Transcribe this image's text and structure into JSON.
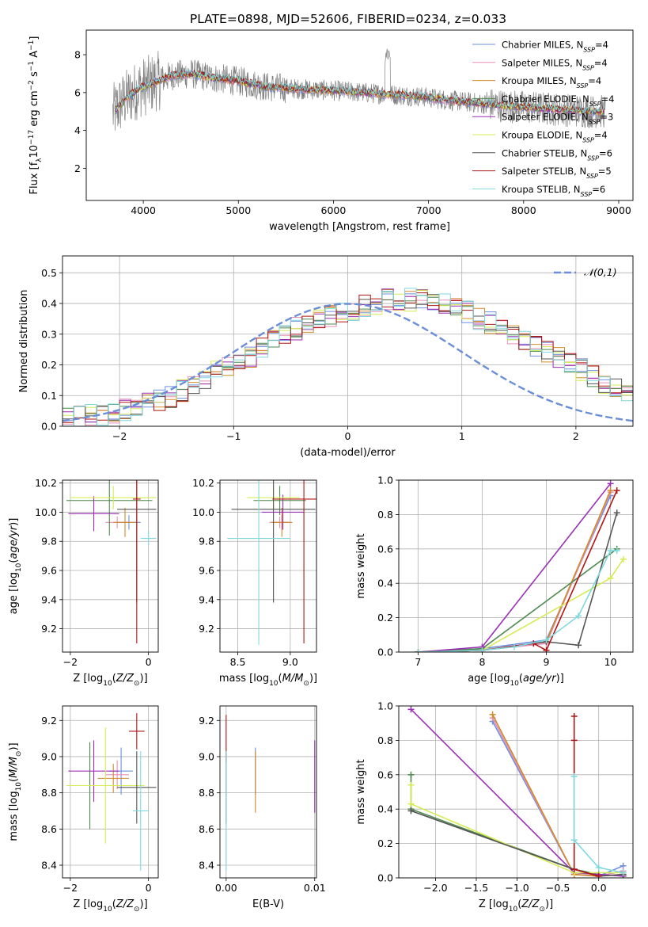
{
  "figure": {
    "title": "PLATE=0898, MJD=52606, FIBERID=0234, z=0.033"
  },
  "colors": {
    "Chabrier MILES": "#6c8fe0",
    "Salpeter MILES": "#e88fb8",
    "Kroupa MILES": "#d08a2a",
    "Chabrier ELODIE": "#4f8a4f",
    "Salpeter ELODIE": "#9c2fb5",
    "Kroupa ELODIE": "#d6ec55",
    "Chabrier STELIB": "#555555",
    "Salpeter STELIB": "#b01515",
    "Kroupa STELIB": "#7fd9df",
    "data": "#808080",
    "gauss": "#6a8fd8"
  },
  "chart_data": [
    {
      "id": "spectrum",
      "type": "line",
      "xlabel": "wavelength [Angstrom, rest frame]",
      "ylabel": "Flux [f_λ 10^-17 erg cm^-2 s^-1 A^-1]",
      "xlim": [
        3400,
        9150
      ],
      "ylim": [
        0.3,
        9.3
      ],
      "xticks": [
        4000,
        5000,
        6000,
        7000,
        8000,
        9000
      ],
      "yticks": [
        2,
        4,
        6,
        8
      ],
      "legend_position": "top-right",
      "legend": [
        {
          "label": "Chabrier MILES, N_SSP=4",
          "series": "Chabrier MILES"
        },
        {
          "label": "Salpeter MILES, N_SSP=4",
          "series": "Salpeter MILES"
        },
        {
          "label": "Kroupa MILES, N_SSP=4",
          "series": "Kroupa MILES"
        },
        {
          "label": "Chabrier ELODIE, N_SSP=4",
          "series": "Chabrier ELODIE"
        },
        {
          "label": "Salpeter ELODIE, N_SSP=3",
          "series": "Salpeter ELODIE"
        },
        {
          "label": "Kroupa ELODIE, N_SSP=4",
          "series": "Kroupa ELODIE"
        },
        {
          "label": "Chabrier STELIB, N_SSP=6",
          "series": "Chabrier STELIB"
        },
        {
          "label": "Salpeter STELIB, N_SSP=5",
          "series": "Salpeter STELIB"
        },
        {
          "label": "Kroupa STELIB, N_SSP=6",
          "series": "Kroupa STELIB"
        }
      ],
      "continuum": {
        "x": [
          3680,
          3800,
          3950,
          4100,
          4300,
          4500,
          4700,
          5000,
          5300,
          5600,
          6000,
          6300,
          6600,
          6900,
          7200,
          7500,
          7800,
          8100,
          8400,
          8700,
          8850
        ],
        "y": [
          4.9,
          5.6,
          6.2,
          6.5,
          6.9,
          7.0,
          6.8,
          6.6,
          6.3,
          6.2,
          6.1,
          6.0,
          5.9,
          5.8,
          5.6,
          5.45,
          5.3,
          5.2,
          5.1,
          5.0,
          5.0
        ]
      }
    },
    {
      "id": "residual-histogram",
      "type": "line",
      "xlabel": "(data-model)/error",
      "ylabel": "Normed distribution",
      "xlim": [
        -2.5,
        2.5
      ],
      "ylim": [
        0,
        0.555
      ],
      "xticks": [
        -2,
        -1,
        0,
        1,
        2
      ],
      "yticks": [
        0.0,
        0.1,
        0.2,
        0.3,
        0.4,
        0.5
      ],
      "legend_position": "top-right",
      "gauss_label": "𝒩(0,1)",
      "bin_edges_from": -2.5,
      "bin_width": 0.1,
      "base_values": [
        0.022,
        0.028,
        0.034,
        0.04,
        0.048,
        0.056,
        0.064,
        0.074,
        0.086,
        0.098,
        0.118,
        0.138,
        0.158,
        0.178,
        0.196,
        0.212,
        0.228,
        0.25,
        0.275,
        0.3,
        0.318,
        0.33,
        0.348,
        0.358,
        0.364,
        0.378,
        0.392,
        0.398,
        0.41,
        0.415,
        0.412,
        0.408,
        0.405,
        0.398,
        0.388,
        0.372,
        0.35,
        0.336,
        0.322,
        0.305,
        0.286,
        0.266,
        0.245,
        0.226,
        0.205,
        0.184,
        0.164,
        0.144,
        0.122,
        0.105,
        0.09,
        0.078,
        0.072,
        0.066,
        0.06,
        0.052,
        0.046,
        0.041,
        0.036,
        0.03
      ]
    },
    {
      "id": "age-vs-Z",
      "type": "scatter",
      "xlabel": "Z [log10(Z/Z⊙)]",
      "ylabel": "age  [log10(age/yr)]",
      "xlim": [
        -2.2,
        0.25
      ],
      "ylim": [
        9.04,
        10.22
      ],
      "xticks": [
        -2,
        0
      ],
      "yticks": [
        9.2,
        9.4,
        9.6,
        9.8,
        10.0,
        10.2
      ],
      "points": [
        {
          "series": "Chabrier MILES",
          "x": -0.5,
          "xerr": 0.3,
          "y": 9.93,
          "yerr": 0.05
        },
        {
          "series": "Salpeter MILES",
          "x": -0.8,
          "xerr": 0.3,
          "y": 9.93,
          "yerr": 0.04
        },
        {
          "series": "Kroupa MILES",
          "x": -0.6,
          "xerr": 0.3,
          "y": 9.93,
          "yerr": 0.1
        },
        {
          "series": "Chabrier ELODIE",
          "x": -1.0,
          "xerr": 1.1,
          "y": 10.08,
          "yerr": 0.24
        },
        {
          "series": "Salpeter ELODIE",
          "x": -1.4,
          "xerr": 0.65,
          "y": 9.99,
          "yerr": 0.12
        },
        {
          "series": "Kroupa ELODIE",
          "x": -0.9,
          "xerr": 1.1,
          "y": 10.1,
          "yerr": 0.08
        },
        {
          "series": "Chabrier STELIB",
          "x": -0.3,
          "xerr": 0.5,
          "y": 10.02,
          "yerr": 0.64
        },
        {
          "series": "Salpeter STELIB",
          "x": -0.3,
          "xerr": 0.1,
          "y": 10.09,
          "yerr": 0.99
        },
        {
          "series": "Kroupa STELIB",
          "x": 0.0,
          "xerr": 0.2,
          "y": 9.82,
          "yerr": 0.05
        }
      ]
    },
    {
      "id": "age-vs-mass",
      "type": "scatter",
      "xlabel": "mass [log10(M/M⊙)]",
      "ylabel": "",
      "xlim": [
        8.33,
        9.25
      ],
      "ylim": [
        9.04,
        10.22
      ],
      "xticks": [
        8.5,
        9.0
      ],
      "yticks": [
        9.2,
        9.4,
        9.6,
        9.8,
        10.0,
        10.2
      ],
      "points": [
        {
          "series": "Chabrier MILES",
          "x": 8.92,
          "xerr": 0.08,
          "y": 9.93,
          "yerr": 0.05
        },
        {
          "series": "Salpeter MILES",
          "x": 8.9,
          "xerr": 0.1,
          "y": 9.93,
          "yerr": 0.04
        },
        {
          "series": "Kroupa MILES",
          "x": 8.92,
          "xerr": 0.1,
          "y": 9.93,
          "yerr": 0.1
        },
        {
          "series": "Chabrier ELODIE",
          "x": 8.9,
          "xerr": 0.25,
          "y": 10.08,
          "yerr": 0.1
        },
        {
          "series": "Salpeter ELODIE",
          "x": 8.93,
          "xerr": 0.2,
          "y": 10.0,
          "yerr": 0.12
        },
        {
          "series": "Kroupa ELODIE",
          "x": 8.84,
          "xerr": 0.25,
          "y": 10.1,
          "yerr": 0.08
        },
        {
          "series": "Chabrier STELIB",
          "x": 8.84,
          "xerr": 0.4,
          "y": 10.02,
          "yerr": 0.64
        },
        {
          "series": "Salpeter STELIB",
          "x": 9.13,
          "xerr": 0.3,
          "y": 10.09,
          "yerr": 0.99
        },
        {
          "series": "Kroupa STELIB",
          "x": 8.7,
          "xerr": 0.3,
          "y": 9.82,
          "yerr": 0.73
        }
      ]
    },
    {
      "id": "mass-weight-vs-age",
      "type": "line",
      "xlabel": "age  [log10(age/yr)]",
      "ylabel": "mass weight",
      "xlim": [
        6.7,
        10.35
      ],
      "ylim": [
        0,
        1.0
      ],
      "xticks": [
        7,
        8,
        9,
        10
      ],
      "yticks": [
        0.0,
        0.2,
        0.4,
        0.6,
        0.8,
        1.0
      ],
      "series": [
        {
          "name": "Chabrier MILES",
          "x": [
            7.0,
            8.0,
            9.0,
            10.0
          ],
          "y": [
            0.0,
            0.02,
            0.07,
            0.91
          ]
        },
        {
          "name": "Salpeter MILES",
          "x": [
            7.0,
            8.0,
            9.0,
            10.0
          ],
          "y": [
            0.0,
            0.01,
            0.05,
            0.93
          ]
        },
        {
          "name": "Kroupa MILES",
          "x": [
            7.0,
            8.0,
            9.0,
            10.0
          ],
          "y": [
            0.0,
            0.01,
            0.06,
            0.94
          ]
        },
        {
          "name": "Chabrier ELODIE",
          "x": [
            7.0,
            8.0,
            10.1
          ],
          "y": [
            0.0,
            0.02,
            0.6
          ]
        },
        {
          "name": "Salpeter ELODIE",
          "x": [
            7.0,
            8.0,
            10.0
          ],
          "y": [
            0.0,
            0.03,
            0.98
          ]
        },
        {
          "name": "Kroupa ELODIE",
          "x": [
            7.0,
            8.0,
            10.0,
            10.2
          ],
          "y": [
            0.0,
            0.01,
            0.43,
            0.54
          ]
        },
        {
          "name": "Chabrier STELIB",
          "x": [
            7.0,
            8.0,
            9.0,
            9.5,
            10.1
          ],
          "y": [
            0.0,
            0.01,
            0.06,
            0.04,
            0.81
          ]
        },
        {
          "name": "Salpeter STELIB",
          "x": [
            7.0,
            8.0,
            8.8,
            9.0,
            10.1
          ],
          "y": [
            0.0,
            0.01,
            0.05,
            0.01,
            0.94
          ]
        },
        {
          "name": "Kroupa STELIB",
          "x": [
            7.0,
            8.0,
            8.5,
            9.0,
            9.5,
            10.0,
            10.1
          ],
          "y": [
            0.0,
            0.01,
            0.03,
            0.07,
            0.21,
            0.59,
            0.59
          ]
        }
      ]
    },
    {
      "id": "mass-vs-Z",
      "type": "scatter",
      "xlabel": "Z [log10(Z/Z⊙)]",
      "ylabel": "mass [log10(M/M⊙)]",
      "xlim": [
        -2.2,
        0.25
      ],
      "ylim": [
        8.33,
        9.28
      ],
      "xticks": [
        -2,
        0
      ],
      "yticks": [
        8.4,
        8.6,
        8.8,
        9.0,
        9.2
      ],
      "points": [
        {
          "series": "Chabrier MILES",
          "x": -0.7,
          "xerr": 0.3,
          "y": 8.92,
          "yerr": 0.13
        },
        {
          "series": "Salpeter MILES",
          "x": -0.8,
          "xerr": 0.3,
          "y": 8.9,
          "yerr": 0.08
        },
        {
          "series": "Kroupa MILES",
          "x": -0.9,
          "xerr": 0.4,
          "y": 8.88,
          "yerr": 0.08
        },
        {
          "series": "Chabrier ELODIE",
          "x": -1.5,
          "xerr": 0.6,
          "y": 8.84,
          "yerr": 0.24
        },
        {
          "series": "Salpeter ELODIE",
          "x": -1.4,
          "xerr": 0.65,
          "y": 8.92,
          "yerr": 0.17
        },
        {
          "series": "Kroupa ELODIE",
          "x": -1.1,
          "xerr": 1.0,
          "y": 8.84,
          "yerr": 0.32
        },
        {
          "series": "Chabrier STELIB",
          "x": -0.3,
          "xerr": 0.5,
          "y": 8.83,
          "yerr": 0.2
        },
        {
          "series": "Salpeter STELIB",
          "x": -0.3,
          "xerr": 0.2,
          "y": 9.14,
          "yerr": 0.1
        },
        {
          "series": "Kroupa STELIB",
          "x": -0.2,
          "xerr": 0.2,
          "y": 8.7,
          "yerr": 0.33
        }
      ]
    },
    {
      "id": "mass-vs-EBV",
      "type": "scatter",
      "xlabel": "E(B-V)",
      "ylabel": "",
      "xlim": [
        -0.0007,
        0.0102
      ],
      "ylim": [
        8.33,
        9.28
      ],
      "xticks": [
        0.0,
        0.01
      ],
      "yticks": [
        8.4,
        8.6,
        8.8,
        9.0,
        9.2
      ],
      "points": [
        {
          "series": "Chabrier MILES",
          "x": 0.0033,
          "xerr": 0,
          "y": 8.92,
          "yerr": 0.13
        },
        {
          "series": "Kroupa MILES",
          "x": 0.0033,
          "xerr": 0,
          "y": 8.86,
          "yerr": 0.17
        },
        {
          "series": "Salpeter ELODIE",
          "x": 0.01,
          "xerr": 0,
          "y": 8.89,
          "yerr": 0.2
        },
        {
          "series": "Chabrier STELIB",
          "x": 0.0,
          "xerr": 0,
          "y": 8.83,
          "yerr": 0.2
        },
        {
          "series": "Salpeter STELIB",
          "x": 0.0,
          "xerr": 0,
          "y": 9.1,
          "yerr": 0.13
        },
        {
          "series": "Kroupa STELIB",
          "x": 0.0,
          "xerr": 0,
          "y": 8.7,
          "yerr": 0.33
        }
      ]
    },
    {
      "id": "mass-weight-vs-Z",
      "type": "line",
      "xlabel": "Z [log10(Z/Z⊙)]",
      "ylabel": "mass weight",
      "xlim": [
        -2.45,
        0.42
      ],
      "ylim": [
        0,
        1.0
      ],
      "xticks": [
        -2.0,
        -1.5,
        -1.0,
        -0.5,
        0.0
      ],
      "yticks": [
        0.0,
        0.2,
        0.4,
        0.6,
        0.8,
        1.0
      ],
      "series": [
        {
          "name": "Chabrier MILES",
          "x": [
            -1.3,
            -0.3,
            0.0,
            0.3
          ],
          "y": [
            0.91,
            0.02,
            0.01,
            0.07
          ]
        },
        {
          "name": "Salpeter MILES",
          "x": [
            -1.3,
            -0.3,
            0.0,
            0.3
          ],
          "y": [
            0.93,
            0.02,
            0.01,
            0.04
          ]
        },
        {
          "name": "Kroupa MILES",
          "x": [
            -1.3,
            -0.3,
            0.0,
            0.3
          ],
          "y": [
            0.95,
            0.02,
            0.01,
            0.02
          ]
        },
        {
          "name": "Chabrier ELODIE",
          "x": [
            -2.3,
            -2.3,
            -0.3,
            0.0
          ],
          "y": [
            0.6,
            0.4,
            0.05,
            0.02
          ]
        },
        {
          "name": "Salpeter ELODIE",
          "x": [
            -2.3,
            -0.3,
            0.3
          ],
          "y": [
            0.98,
            0.03,
            0.01
          ]
        },
        {
          "name": "Kroupa ELODIE",
          "x": [
            -2.3,
            -2.3,
            -0.3,
            0.3
          ],
          "y": [
            0.54,
            0.43,
            0.03,
            0.03
          ]
        },
        {
          "name": "Chabrier STELIB",
          "x": [
            -2.3,
            -0.3,
            0.0,
            0.3
          ],
          "y": [
            0.39,
            0.05,
            0.01,
            0.02
          ]
        },
        {
          "name": "Salpeter STELIB",
          "x": [
            -0.3,
            -0.3,
            -0.3,
            0.0
          ],
          "y": [
            0.94,
            0.8,
            0.05,
            0.01
          ]
        },
        {
          "name": "Kroupa STELIB",
          "x": [
            -0.3,
            -0.3,
            0.0,
            0.3
          ],
          "y": [
            0.59,
            0.22,
            0.06,
            0.03
          ]
        }
      ]
    }
  ]
}
